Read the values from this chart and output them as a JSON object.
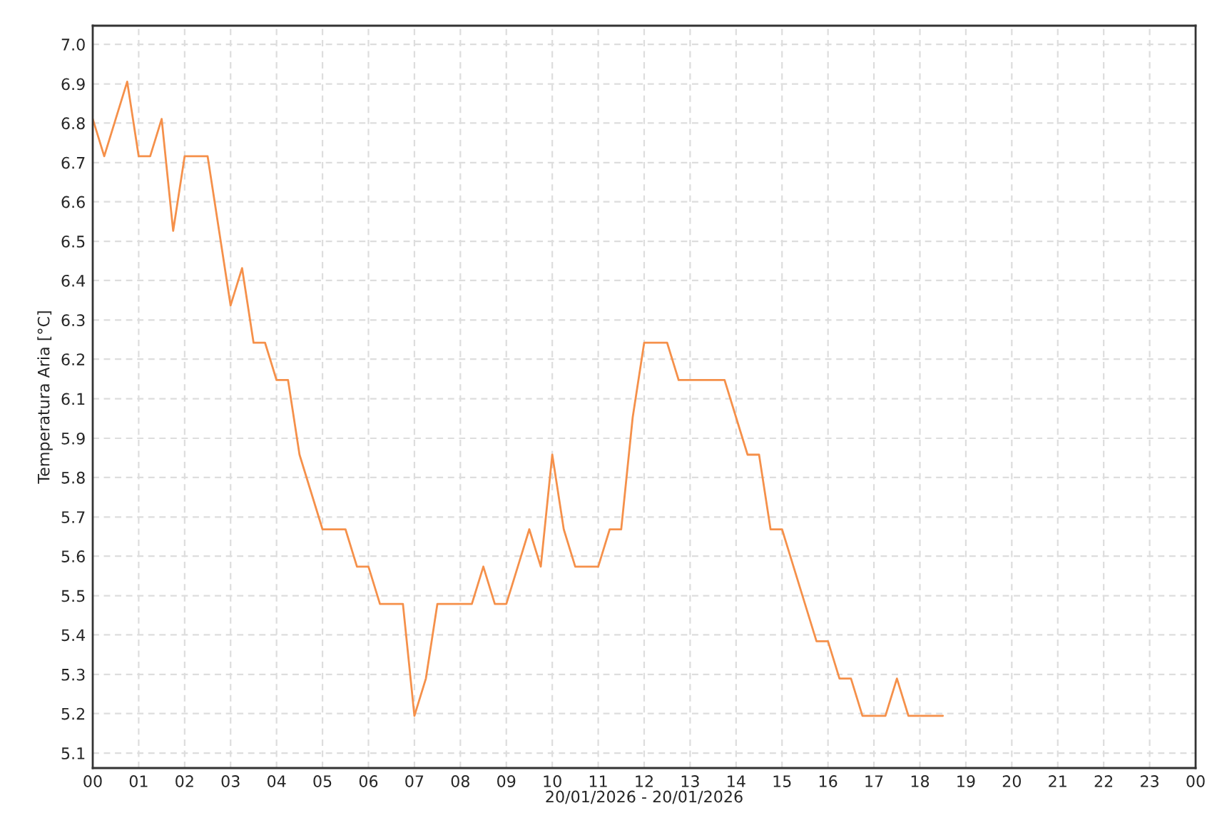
{
  "chart_data": {
    "type": "line",
    "xlabel": "20/01/2026 - 20/01/2026",
    "ylabel": "Temperatura Aria [°C]",
    "x": [
      0,
      0.25,
      0.5,
      0.75,
      1,
      1.25,
      1.5,
      1.75,
      2,
      2.25,
      2.5,
      2.75,
      3,
      3.25,
      3.5,
      3.75,
      4,
      4.25,
      4.5,
      4.75,
      5,
      5.25,
      5.5,
      5.75,
      6,
      6.25,
      6.5,
      6.75,
      7,
      7.25,
      7.5,
      7.75,
      8,
      8.25,
      8.5,
      8.75,
      9,
      9.25,
      9.5,
      9.75,
      10,
      10.25,
      10.5,
      10.75,
      11,
      11.25,
      11.5,
      11.75,
      12,
      12.25,
      12.5,
      12.75,
      13,
      13.25,
      13.5,
      13.75,
      14,
      14.25,
      14.5,
      14.75,
      15,
      15.25,
      15.5,
      15.75,
      16,
      16.25,
      16.5,
      16.75,
      17,
      17.25,
      17.5,
      17.75,
      18,
      18.25,
      18.5
    ],
    "series": [
      {
        "color": "#f5904a",
        "values": [
          6.8,
          6.7,
          6.8,
          6.9,
          6.7,
          6.7,
          6.8,
          6.5,
          6.7,
          6.7,
          6.7,
          6.5,
          6.3,
          6.4,
          6.2,
          6.2,
          6.1,
          6.1,
          5.9,
          5.8,
          5.7,
          5.7,
          5.7,
          5.6,
          5.6,
          5.5,
          5.5,
          5.5,
          5.2,
          5.3,
          5.5,
          5.5,
          5.5,
          5.5,
          5.6,
          5.5,
          5.5,
          5.6,
          5.7,
          5.6,
          5.9,
          5.7,
          5.6,
          5.6,
          5.6,
          5.7,
          5.7,
          6.0,
          6.2,
          6.2,
          6.2,
          6.1,
          6.1,
          6.1,
          6.1,
          6.1,
          6.0,
          5.9,
          5.9,
          5.7,
          5.7,
          5.6,
          5.5,
          5.4,
          5.4,
          5.3,
          5.3,
          5.2,
          5.2,
          5.2,
          5.3,
          5.2,
          5.2,
          5.2,
          5.2
        ]
      }
    ],
    "xlim": [
      0,
      24
    ],
    "xticks": [
      {
        "value": 0,
        "label": "00"
      },
      {
        "value": 1,
        "label": "01"
      },
      {
        "value": 2,
        "label": "02"
      },
      {
        "value": 3,
        "label": "03"
      },
      {
        "value": 4,
        "label": "04"
      },
      {
        "value": 5,
        "label": "05"
      },
      {
        "value": 6,
        "label": "06"
      },
      {
        "value": 7,
        "label": "07"
      },
      {
        "value": 8,
        "label": "08"
      },
      {
        "value": 9,
        "label": "09"
      },
      {
        "value": 10,
        "label": "10"
      },
      {
        "value": 11,
        "label": "11"
      },
      {
        "value": 12,
        "label": "12"
      },
      {
        "value": 13,
        "label": "13"
      },
      {
        "value": 14,
        "label": "14"
      },
      {
        "value": 15,
        "label": "15"
      },
      {
        "value": 16,
        "label": "16"
      },
      {
        "value": 17,
        "label": "17"
      },
      {
        "value": 18,
        "label": "18"
      },
      {
        "value": 19,
        "label": "19"
      },
      {
        "value": 20,
        "label": "20"
      },
      {
        "value": 21,
        "label": "21"
      },
      {
        "value": 22,
        "label": "22"
      },
      {
        "value": 23,
        "label": "23"
      },
      {
        "value": 24,
        "label": "00"
      }
    ],
    "ylim": [
      5.06,
      7.05
    ],
    "yticks": [
      {
        "value": 5.1,
        "label": "5.1"
      },
      {
        "value": 5.206,
        "label": "5.2"
      },
      {
        "value": 5.311,
        "label": "5.3"
      },
      {
        "value": 5.417,
        "label": "5.4"
      },
      {
        "value": 5.522,
        "label": "5.5"
      },
      {
        "value": 5.628,
        "label": "5.6"
      },
      {
        "value": 5.733,
        "label": "5.7"
      },
      {
        "value": 5.839,
        "label": "5.8"
      },
      {
        "value": 5.944,
        "label": "5.9"
      },
      {
        "value": 6.05,
        "label": "6.1"
      },
      {
        "value": 6.156,
        "label": "6.2"
      },
      {
        "value": 6.261,
        "label": "6.3"
      },
      {
        "value": 6.367,
        "label": "6.4"
      },
      {
        "value": 6.472,
        "label": "6.5"
      },
      {
        "value": 6.578,
        "label": "6.6"
      },
      {
        "value": 6.683,
        "label": "6.7"
      },
      {
        "value": 6.789,
        "label": "6.8"
      },
      {
        "value": 6.894,
        "label": "6.9"
      },
      {
        "value": 7.0,
        "label": "7.0"
      }
    ],
    "grid": true,
    "marker": "none",
    "line_style": "solid",
    "legend": false
  }
}
